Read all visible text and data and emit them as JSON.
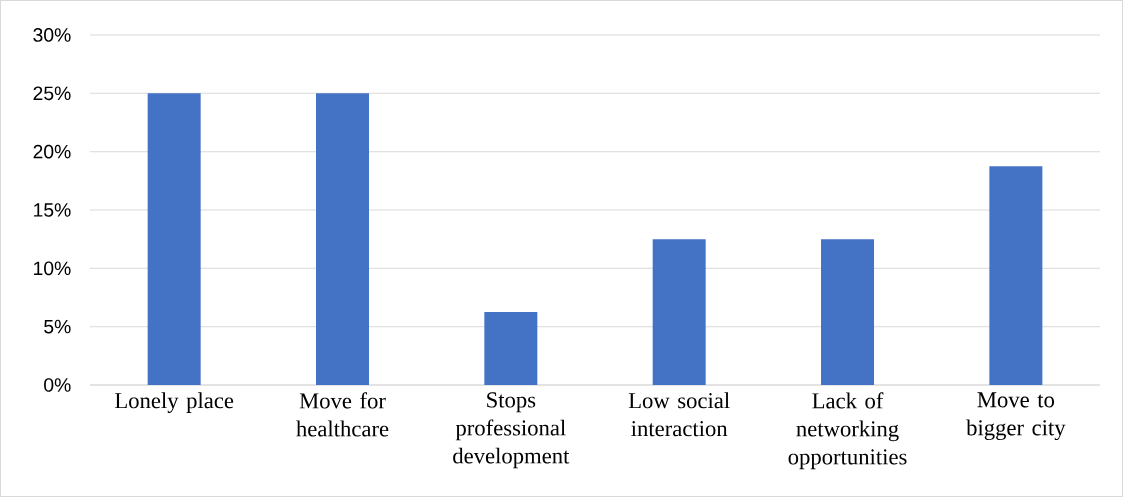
{
  "chart_data": {
    "type": "bar",
    "categories": [
      "Lonely place",
      "Move for healthcare",
      "Stops professional development",
      "Low social interaction",
      "Lack of networking opportunities",
      "Move to bigger city"
    ],
    "values": [
      25,
      25,
      6.25,
      12.5,
      12.5,
      18.75
    ],
    "color": "#4472c4",
    "ylim": [
      0,
      30
    ],
    "yticks": [
      {
        "value": 0,
        "label": "0%"
      },
      {
        "value": 5,
        "label": "5%"
      },
      {
        "value": 10,
        "label": "10%"
      },
      {
        "value": 15,
        "label": "15%"
      },
      {
        "value": 20,
        "label": "20%"
      },
      {
        "value": 25,
        "label": "25%"
      },
      {
        "value": 30,
        "label": "30%"
      }
    ],
    "grid": "y"
  }
}
